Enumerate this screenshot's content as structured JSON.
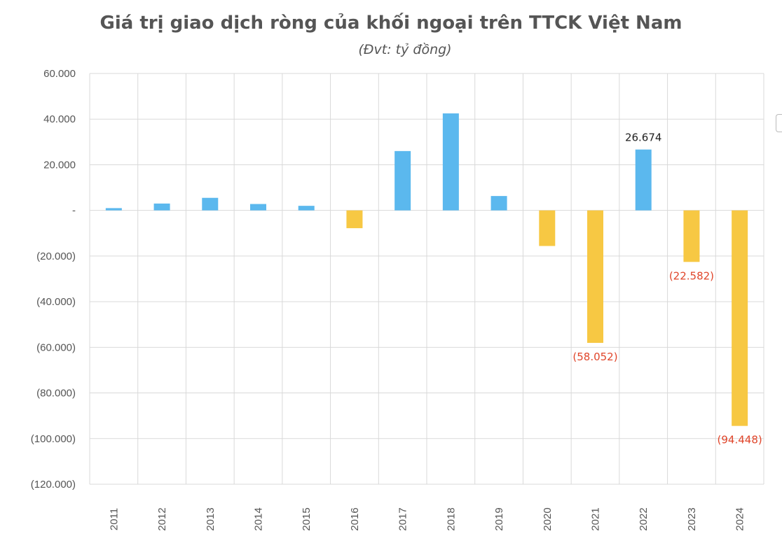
{
  "chart_data": {
    "type": "bar",
    "title": "Giá trị giao dịch ròng của khối ngoại trên TTCK Việt Nam",
    "subtitle": "(Đvt: tỷ đồng)",
    "xlabel": "",
    "ylabel": "",
    "categories": [
      "2011",
      "2012",
      "2013",
      "2014",
      "2015",
      "2016",
      "2017",
      "2018",
      "2019",
      "2020",
      "2021",
      "2022",
      "2023",
      "2024"
    ],
    "values": [
      1000,
      3000,
      5500,
      2800,
      2000,
      -7800,
      26000,
      42500,
      6300,
      -15600,
      -58052,
      26674,
      -22582,
      -94448
    ],
    "ylim": [
      -120000,
      60000
    ],
    "y_ticks": [
      {
        "value": 60000,
        "label": "60.000"
      },
      {
        "value": 40000,
        "label": "40.000"
      },
      {
        "value": 20000,
        "label": "20.000"
      },
      {
        "value": 0,
        "label": "-"
      },
      {
        "value": -20000,
        "label": "(20.000)"
      },
      {
        "value": -40000,
        "label": "(40.000)"
      },
      {
        "value": -60000,
        "label": "(60.000)"
      },
      {
        "value": -80000,
        "label": "(80.000)"
      },
      {
        "value": -100000,
        "label": "(100.000)"
      },
      {
        "value": -120000,
        "label": "(120.000)"
      }
    ],
    "data_labels": [
      {
        "category": "2021",
        "value": -58052,
        "text": "(58.052)"
      },
      {
        "category": "2022",
        "value": 26674,
        "text": "26.674"
      },
      {
        "category": "2023",
        "value": -22582,
        "text": "(22.582)"
      },
      {
        "category": "2024",
        "value": -94448,
        "text": "(94.448)"
      }
    ],
    "colors": {
      "positive": "#5bb8ee",
      "negative": "#f7c843",
      "negative_label": "#e0452a",
      "positive_label": "#222222",
      "grid": "#d9d9d9"
    },
    "grid": true,
    "legend": "none"
  }
}
